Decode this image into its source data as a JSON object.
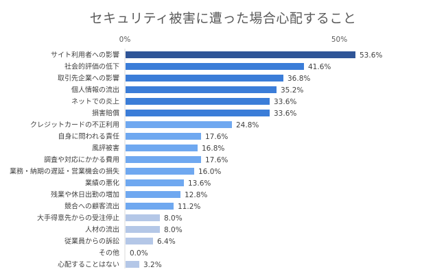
{
  "chart_data": {
    "type": "bar",
    "orientation": "horizontal",
    "title": "セキュリティ被害に遭った場合心配すること",
    "xlim": [
      0,
      60
    ],
    "x_ticks": [
      {
        "value": 0,
        "label": "0%"
      },
      {
        "value": 50,
        "label": "50%"
      }
    ],
    "grid": false,
    "legend": "none",
    "categories": [
      "サイト利用者への影響",
      "社会的評価の低下",
      "取引先企業への影響",
      "個人情報の流出",
      "ネットでの炎上",
      "損害賠償",
      "クレジットカードの不正利用",
      "自身に問われる責任",
      "風評被害",
      "調査や対応にかかる費用",
      "業務・納期の遅延・営業機会の損失",
      "業績の悪化",
      "残業や休日出勤の増加",
      "競合への顧客流出",
      "大手得意先からの受注停止",
      "人材の流出",
      "従業員からの訴訟",
      "その他",
      "心配することはない"
    ],
    "values": [
      53.6,
      41.6,
      36.8,
      35.2,
      33.6,
      33.6,
      24.8,
      17.6,
      16.8,
      17.6,
      16.0,
      13.6,
      12.8,
      11.2,
      8.0,
      8.0,
      6.4,
      0.0,
      3.2
    ],
    "value_labels": [
      "53.6%",
      "41.6%",
      "36.8%",
      "35.2%",
      "33.6%",
      "33.6%",
      "24.8%",
      "17.6%",
      "16.8%",
      "17.6%",
      "16.0%",
      "13.6%",
      "12.8%",
      "11.2%",
      "8.0%",
      "8.0%",
      "6.4%",
      "0.0%",
      "3.2%"
    ],
    "bar_colors": [
      "#2f5597",
      "#3b7dd8",
      "#3b7dd8",
      "#3b7dd8",
      "#3b7dd8",
      "#3b7dd8",
      "#6fa8f0",
      "#6fa8f0",
      "#6fa8f0",
      "#6fa8f0",
      "#6fa8f0",
      "#6fa8f0",
      "#6fa8f0",
      "#6fa8f0",
      "#b4c7e7",
      "#b4c7e7",
      "#b4c7e7",
      "#b4c7e7",
      "#b4c7e7"
    ],
    "axis_color": "#d9d9d9"
  }
}
